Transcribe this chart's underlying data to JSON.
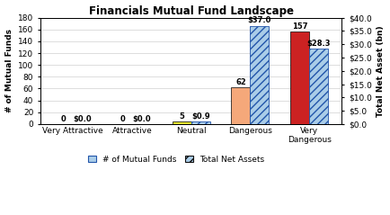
{
  "title": "Financials Mutual Fund Landscape",
  "categories": [
    "Very Attractive",
    "Attractive",
    "Neutral",
    "Dangerous",
    "Very\nDangerous"
  ],
  "num_funds": [
    0,
    0,
    5,
    62,
    157
  ],
  "total_net_assets": [
    0.0,
    0.0,
    0.9,
    37.0,
    28.3
  ],
  "fund_bar_colors": [
    "#a0a0a0",
    "#a0a0a0",
    "#e8e830",
    "#f5a87a",
    "#cc2222"
  ],
  "tna_face_color": "#aacde8",
  "tna_edge_color": "#2255aa",
  "ylabel_left": "# of Mutual Funds",
  "ylabel_right": "Total Net Asset (bn)",
  "ylim_left": [
    0,
    180
  ],
  "ylim_right": [
    0,
    40.0
  ],
  "yticks_left": [
    0,
    20,
    40,
    60,
    80,
    100,
    120,
    140,
    160,
    180
  ],
  "yticks_right": [
    0.0,
    5.0,
    10.0,
    15.0,
    20.0,
    25.0,
    30.0,
    35.0,
    40.0
  ],
  "ytick_labels_right": [
    "$0.0",
    "$5.0",
    "$10.0",
    "$15.0",
    "$20.0",
    "$25.0",
    "$30.0",
    "$35.0",
    "$40.0"
  ],
  "fund_annots": [
    "0",
    "0",
    "5",
    "62",
    "157"
  ],
  "tna_annots": [
    "$0.0",
    "$0.0",
    "$0.9",
    "$37.0",
    "$28.3"
  ],
  "legend_labels": [
    "# of Mutual Funds",
    "Total Net Assets"
  ],
  "bar_width": 0.32
}
